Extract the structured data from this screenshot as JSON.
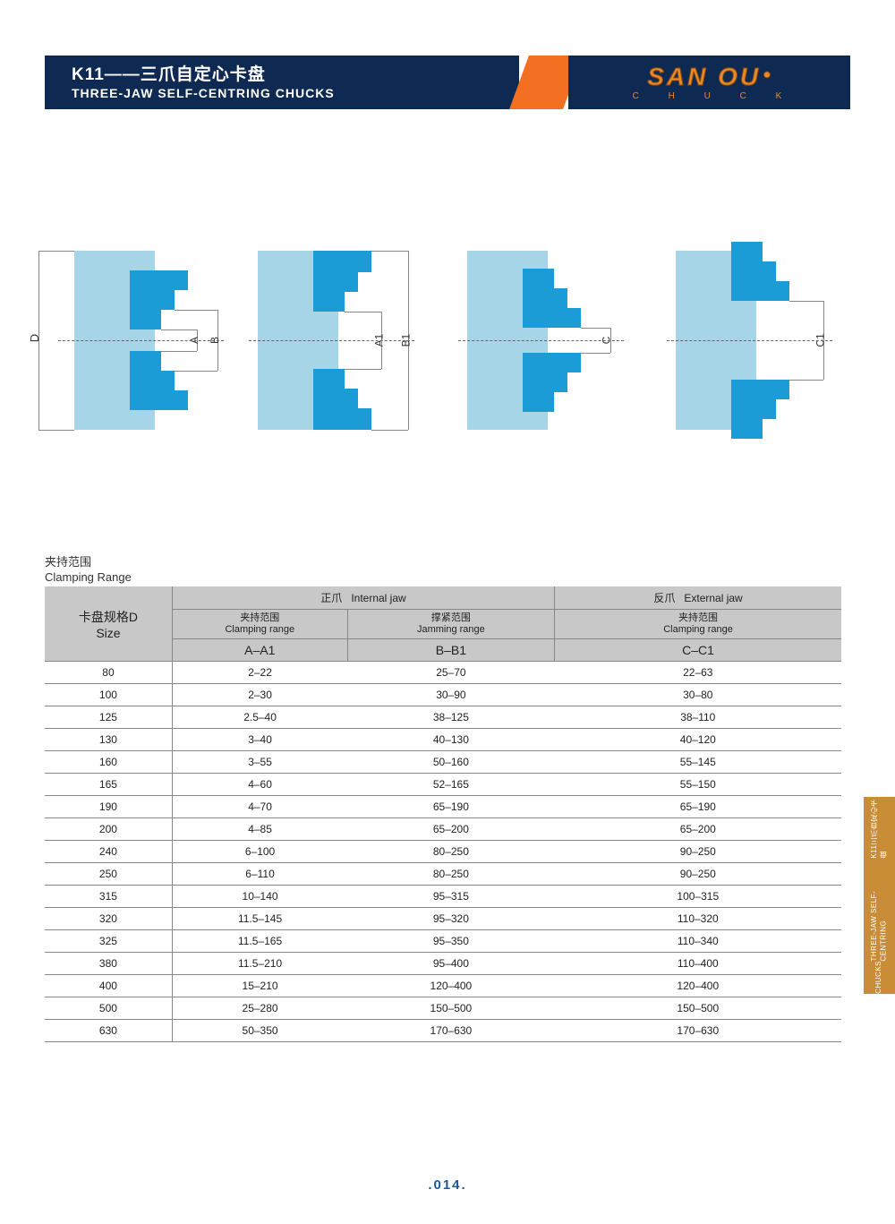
{
  "banner": {
    "title_cn": "K11——三爪自定心卡盘",
    "title_en": "THREE-JAW SELF-CENTRING  CHUCKS",
    "logo_main": "SAN OU",
    "logo_sub": "C H U C K"
  },
  "colors": {
    "navy": "#0f2a52",
    "orange": "#f36f21",
    "chuck_body": "#a6d5e7",
    "jaw": "#1b9cd7",
    "logo": "#e88a2a",
    "side_tab": "#c98c37",
    "page_num": "#1b5a99",
    "header_bg": "#c8c8c8"
  },
  "diagrams": {
    "labels": [
      "D",
      "A",
      "B",
      "A1",
      "B1",
      "C",
      "C1"
    ]
  },
  "table": {
    "title_cn": "夹持范围",
    "title_en": "Clamping Range",
    "size_cn": "卡盘规格D",
    "size_en": "Size",
    "internal_cn": "正爪",
    "internal_en": "Internal jaw",
    "external_cn": "反爪",
    "external_en": "External jaw",
    "clamp_cn": "夹持范围",
    "clamp_en": "Clamping range",
    "jam_cn": "撑紧范围",
    "jam_en": "Jamming range",
    "col1": "A–A1",
    "col2": "B–B1",
    "col3": "C–C1",
    "rows": [
      {
        "s": "80",
        "a": "2–22",
        "b": "25–70",
        "c": "22–63"
      },
      {
        "s": "100",
        "a": "2–30",
        "b": "30–90",
        "c": "30–80"
      },
      {
        "s": "125",
        "a": "2.5–40",
        "b": "38–125",
        "c": "38–110"
      },
      {
        "s": "130",
        "a": "3–40",
        "b": "40–130",
        "c": "40–120"
      },
      {
        "s": "160",
        "a": "3–55",
        "b": "50–160",
        "c": "55–145"
      },
      {
        "s": "165",
        "a": "4–60",
        "b": "52–165",
        "c": "55–150"
      },
      {
        "s": "190",
        "a": "4–70",
        "b": "65–190",
        "c": "65–190"
      },
      {
        "s": "200",
        "a": "4–85",
        "b": "65–200",
        "c": "65–200"
      },
      {
        "s": "240",
        "a": "6–100",
        "b": "80–250",
        "c": "90–250"
      },
      {
        "s": "250",
        "a": "6–110",
        "b": "80–250",
        "c": "90–250"
      },
      {
        "s": "315",
        "a": "10–140",
        "b": "95–315",
        "c": "100–315"
      },
      {
        "s": "320",
        "a": "11.5–145",
        "b": "95–320",
        "c": "110–320"
      },
      {
        "s": "325",
        "a": "11.5–165",
        "b": "95–350",
        "c": "110–340"
      },
      {
        "s": "380",
        "a": "11.5–210",
        "b": "95–400",
        "c": "110–400"
      },
      {
        "s": "400",
        "a": "15–210",
        "b": "120–400",
        "c": "120–400"
      },
      {
        "s": "500",
        "a": "25–280",
        "b": "150–500",
        "c": "150–500"
      },
      {
        "s": "630",
        "a": "50–350",
        "b": "170–630",
        "c": "170–630"
      }
    ]
  },
  "side_tab": {
    "line1": "K11三爪自定心卡盘",
    "line2": "THREE-JAW SELF-CENTRING",
    "line3": "CHUCKS"
  },
  "page_num": ".014."
}
